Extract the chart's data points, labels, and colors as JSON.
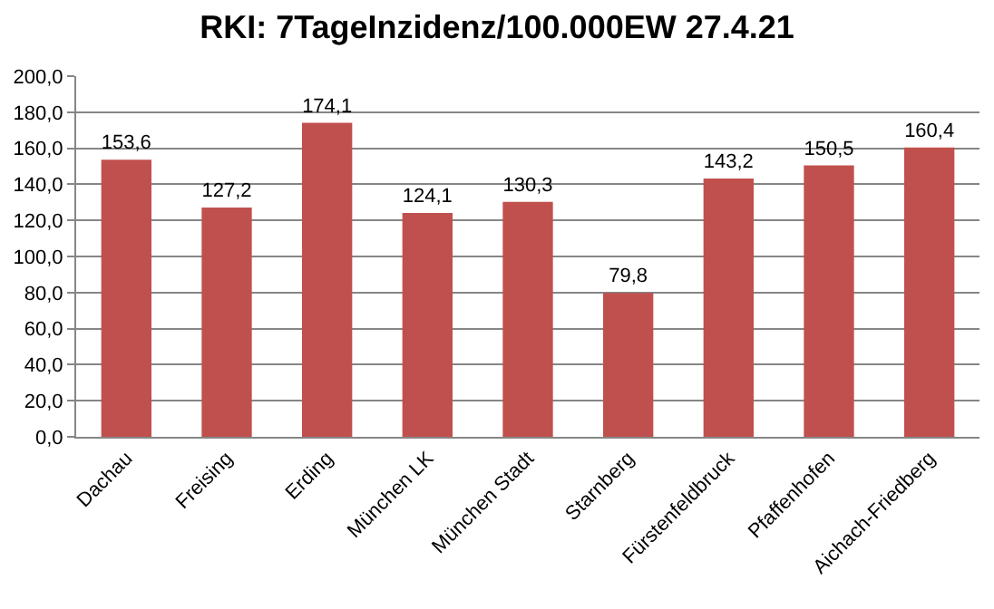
{
  "chart_data": {
    "type": "bar",
    "title": "RKI: 7TageInzidenz/100.000EW 27.4.21",
    "categories": [
      "Dachau",
      "Freising",
      "Erding",
      "München LK",
      "München Stadt",
      "Starnberg",
      "Fürstenfeldbruck",
      "Pfaffenhofen",
      "Aichach-Friedberg"
    ],
    "values": [
      153.6,
      127.2,
      174.1,
      124.1,
      130.3,
      79.8,
      143.2,
      150.5,
      160.4
    ],
    "value_labels": [
      "153,6",
      "127,2",
      "174,1",
      "124,1",
      "130,3",
      "79,8",
      "143,2",
      "150,5",
      "160,4"
    ],
    "color": "#c0504d",
    "ylim": [
      0,
      200
    ],
    "yticks": [
      {
        "value": 0,
        "label": "0,0"
      },
      {
        "value": 20,
        "label": "20,0"
      },
      {
        "value": 40,
        "label": "40,0"
      },
      {
        "value": 60,
        "label": "60,0"
      },
      {
        "value": 80,
        "label": "80,0"
      },
      {
        "value": 100,
        "label": "100,0"
      },
      {
        "value": 120,
        "label": "120,0"
      },
      {
        "value": 140,
        "label": "140,0"
      },
      {
        "value": 160,
        "label": "160,0"
      },
      {
        "value": 180,
        "label": "180,0"
      },
      {
        "value": 200,
        "label": "200,0"
      }
    ],
    "grid": "y",
    "legend": false
  }
}
